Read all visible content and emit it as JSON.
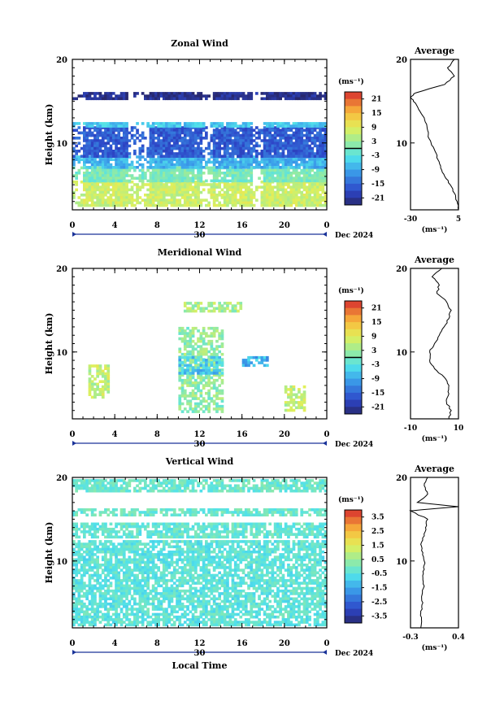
{
  "chart_data": [
    {
      "type": "heatmap",
      "title": "Zonal Wind",
      "xlabel": "",
      "ylabel": "Height (km)",
      "xlim": [
        0,
        24
      ],
      "ylim": [
        2,
        20
      ],
      "x_ticks": [
        "0",
        "4",
        "8",
        "12",
        "16",
        "20",
        "0"
      ],
      "y_ticks": [
        "10",
        "20"
      ],
      "date_day": "30",
      "date_label": "Dec 2024",
      "colorbar": {
        "unit": "(ms⁻¹)",
        "range": [
          -24,
          24
        ],
        "ticks": [
          "21",
          "15",
          "9",
          "3",
          "-3",
          "-9",
          "-15",
          "-21"
        ],
        "zero_line": 0
      },
      "field": {
        "columns": [
          [
            0,
            1
          ],
          [
            5,
            7
          ],
          [
            12,
            13
          ],
          [
            17,
            18
          ]
        ],
        "rows": [
          {
            "y0": 2.5,
            "y1": 5.5,
            "value": 7
          },
          {
            "y0": 5.5,
            "y1": 7.2,
            "value": 0
          },
          {
            "y0": 7.2,
            "y1": 8.5,
            "value": -8
          },
          {
            "y0": 8.5,
            "y1": 12.0,
            "value": -16
          },
          {
            "y0": 12.0,
            "y1": 12.5,
            "value": -6
          },
          {
            "y0": 15.3,
            "y1": 16.1,
            "value": -22
          }
        ]
      },
      "average_profile": {
        "title": "Average",
        "xlabel": "(ms⁻¹)",
        "xlim": [
          -30,
          5
        ],
        "x_ticks": [
          "-30",
          "5"
        ],
        "y_ticks": [
          "10",
          "20"
        ],
        "height": [
          2,
          3,
          4,
          5,
          6,
          7,
          8,
          9,
          10,
          11,
          12,
          13,
          14,
          15,
          15.5,
          16,
          17,
          18,
          19,
          20
        ],
        "value": [
          5,
          4,
          2,
          -1,
          -5,
          -8,
          -10,
          -12,
          -15,
          -17,
          -18,
          -20,
          -24,
          -28,
          -30,
          -26,
          -5,
          2,
          -3,
          2
        ]
      }
    },
    {
      "type": "heatmap",
      "title": "Meridional Wind",
      "xlabel": "",
      "ylabel": "Height (km)",
      "xlim": [
        0,
        24
      ],
      "ylim": [
        2,
        20
      ],
      "x_ticks": [
        "0",
        "4",
        "8",
        "12",
        "16",
        "20",
        "0"
      ],
      "y_ticks": [
        "10",
        "20"
      ],
      "date_day": "30",
      "date_label": "Dec 2024",
      "colorbar": {
        "unit": "(ms⁻¹)",
        "range": [
          -24,
          24
        ],
        "ticks": [
          "21",
          "15",
          "9",
          "3",
          "-3",
          "-9",
          "-15",
          "-21"
        ],
        "zero_line": 0
      },
      "field": {
        "patches": [
          {
            "x0": 1.5,
            "x1": 3.5,
            "y0": 4.5,
            "y1": 8.5,
            "value": 6
          },
          {
            "x0": 10,
            "x1": 14,
            "y0": 3,
            "y1": 13,
            "value": 2
          },
          {
            "x0": 10,
            "x1": 14,
            "y0": 7.5,
            "y1": 9.5,
            "value": -6
          },
          {
            "x0": 16,
            "x1": 18.5,
            "y0": 8.5,
            "y1": 9.5,
            "value": -8
          },
          {
            "x0": 10.5,
            "x1": 16,
            "y0": 15,
            "y1": 16,
            "value": 4
          },
          {
            "x0": 20,
            "x1": 22,
            "y0": 3,
            "y1": 6,
            "value": 6
          }
        ]
      },
      "average_profile": {
        "title": "Average",
        "xlabel": "(ms⁻¹)",
        "xlim": [
          -10,
          10
        ],
        "x_ticks": [
          "-10",
          "10"
        ],
        "y_ticks": [
          "10",
          "20"
        ],
        "height": [
          2,
          3,
          4,
          5,
          6,
          7,
          8,
          9,
          10,
          11,
          12,
          13,
          14,
          15,
          16,
          17,
          18,
          19,
          20
        ],
        "value": [
          6,
          7,
          5,
          6,
          6,
          4,
          0,
          -2,
          -2,
          0,
          2,
          4,
          6,
          7,
          5,
          1,
          2,
          -1,
          3
        ]
      }
    },
    {
      "type": "heatmap",
      "title": "Vertical Wind",
      "xlabel": "Local Time",
      "ylabel": "Height (km)",
      "xlim": [
        0,
        24
      ],
      "ylim": [
        2,
        20
      ],
      "x_ticks": [
        "0",
        "4",
        "8",
        "12",
        "16",
        "20",
        "0"
      ],
      "y_ticks": [
        "10",
        "20"
      ],
      "date_day": "30",
      "date_label": "Dec 2024",
      "colorbar": {
        "unit": "(ms⁻¹)",
        "range": [
          -4,
          4
        ],
        "ticks": [
          "3.5",
          "2.5",
          "1.5",
          "0.5",
          "-0.5",
          "-1.5",
          "-2.5",
          "-3.5"
        ],
        "zero_line": null
      },
      "field": {
        "rows": [
          {
            "y0": 2.3,
            "y1": 12.5,
            "value": -0.4
          },
          {
            "y0": 13.0,
            "y1": 14.6,
            "value": -0.3
          },
          {
            "y0": 15.4,
            "y1": 16.3,
            "value": -0.2
          },
          {
            "y0": 18.3,
            "y1": 19.8,
            "value": -0.2
          }
        ]
      },
      "average_profile": {
        "title": "Average",
        "xlabel": "(ms⁻¹)",
        "xlim": [
          -0.3,
          0.4
        ],
        "x_ticks": [
          "-0.3",
          "0.4"
        ],
        "y_ticks": [
          "10",
          "20"
        ],
        "height": [
          2,
          3,
          4,
          5,
          6,
          7,
          8,
          9,
          10,
          11,
          12,
          13,
          14,
          15,
          16,
          16.5,
          17,
          18,
          19,
          20
        ],
        "value": [
          -0.15,
          -0.14,
          -0.15,
          -0.12,
          -0.13,
          -0.1,
          -0.12,
          -0.1,
          -0.1,
          -0.12,
          -0.15,
          -0.1,
          -0.08,
          -0.05,
          -0.3,
          0.4,
          -0.2,
          -0.05,
          -0.1,
          -0.05
        ]
      }
    }
  ]
}
